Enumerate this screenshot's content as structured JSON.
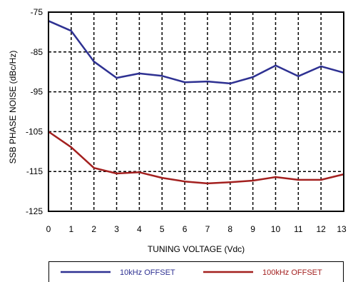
{
  "chart_data": {
    "type": "line",
    "x": [
      0,
      1,
      2,
      3,
      4,
      5,
      6,
      7,
      8,
      9,
      10,
      11,
      12,
      13
    ],
    "series": [
      {
        "name": "10kHz OFFSET",
        "color": "#2e3192",
        "values": [
          -77.2,
          -79.7,
          -87.4,
          -91.5,
          -90.4,
          -91.0,
          -92.6,
          -92.4,
          -92.9,
          -91.3,
          -88.4,
          -91.1,
          -88.6,
          -90.2
        ]
      },
      {
        "name": "100kHz OFFSET",
        "color": "#a3201f",
        "values": [
          -105.0,
          -108.9,
          -114.1,
          -115.5,
          -115.2,
          -116.6,
          -117.5,
          -118.0,
          -117.7,
          -117.3,
          -116.4,
          -117.1,
          -117.1,
          -115.7
        ]
      }
    ],
    "xlabel": "TUNING VOLTAGE (Vdc)",
    "ylabel": "SSB PHASE NOISE (dBc/Hz)",
    "xlim": [
      0,
      13
    ],
    "ylim": [
      -125,
      -75
    ],
    "xticks": [
      0,
      1,
      2,
      3,
      4,
      5,
      6,
      7,
      8,
      9,
      10,
      11,
      12,
      13
    ],
    "yticks": [
      -75,
      -85,
      -95,
      -105,
      -115,
      -125
    ],
    "grid": true,
    "grid_style": "dashed",
    "legend_position": "bottom"
  }
}
